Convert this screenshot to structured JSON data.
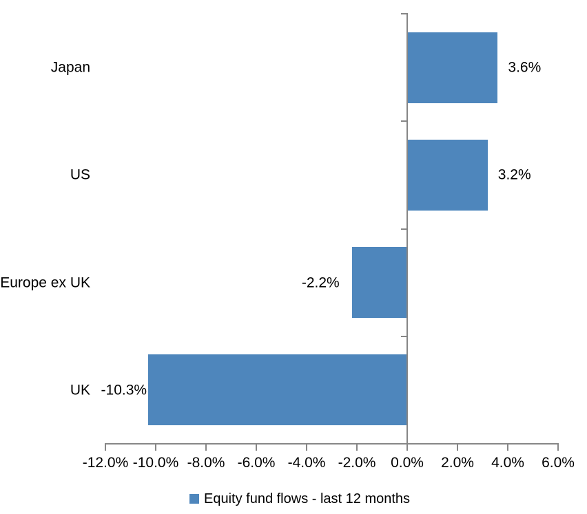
{
  "chart_data": {
    "type": "bar",
    "orientation": "horizontal",
    "title": "",
    "categories": [
      "Japan",
      "US",
      "Europe ex UK",
      "UK"
    ],
    "series": [
      {
        "name": "Equity fund flows - last 12 months",
        "values": [
          3.6,
          3.2,
          -2.2,
          -10.3
        ],
        "data_labels": [
          "3.6%",
          "3.2%",
          "-2.2%",
          "-10.3%"
        ],
        "color": "#4E86BC"
      }
    ],
    "xlim": [
      -12,
      6
    ],
    "x_ticks": [
      {
        "value": -12,
        "label": "-12.0%"
      },
      {
        "value": -10,
        "label": "-10.0%"
      },
      {
        "value": -8,
        "label": "-8.0%"
      },
      {
        "value": -6,
        "label": "-6.0%"
      },
      {
        "value": -4,
        "label": "-4.0%"
      },
      {
        "value": -2,
        "label": "-2.0%"
      },
      {
        "value": 0,
        "label": "0.0%"
      },
      {
        "value": 2,
        "label": "2.0%"
      },
      {
        "value": 4,
        "label": "4.0%"
      },
      {
        "value": 6,
        "label": "6.0%"
      }
    ],
    "grid": false,
    "legend_position": "bottom",
    "axis_color": "#868686",
    "text_color": "#000000",
    "background": "#FFFFFF"
  },
  "legend": {
    "label": "Equity fund flows - last 12 months"
  }
}
